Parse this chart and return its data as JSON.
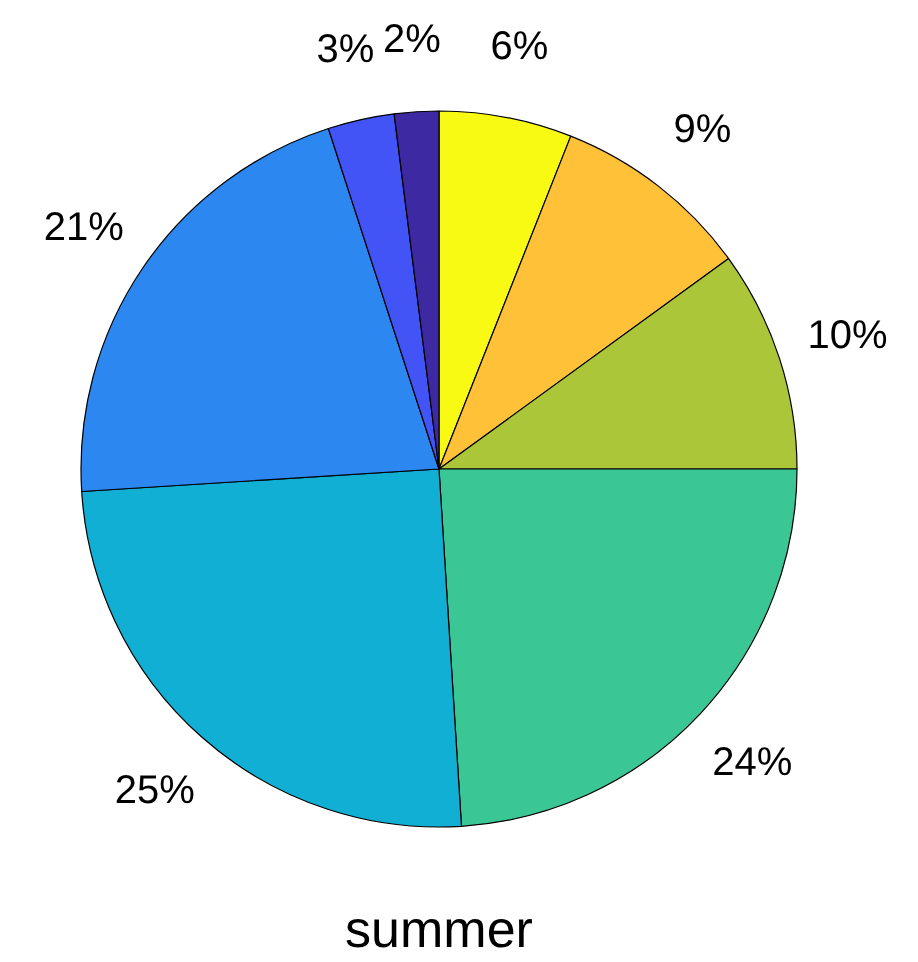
{
  "chart_data": {
    "type": "pie",
    "xlabel": "summer",
    "categories": [
      null,
      null,
      null,
      null,
      null,
      null,
      null,
      null
    ],
    "values": [
      6,
      9,
      10,
      24,
      25,
      21,
      3,
      2
    ],
    "colors": [
      "#f9fa14",
      "#fec137",
      "#abc639",
      "#3bc695",
      "#12afd4",
      "#2c87f0",
      "#4254f5",
      "#3d2aa3"
    ],
    "value_labels": [
      "6%",
      "9%",
      "10%",
      "24%",
      "25%",
      "21%",
      "3%",
      "2%"
    ]
  }
}
